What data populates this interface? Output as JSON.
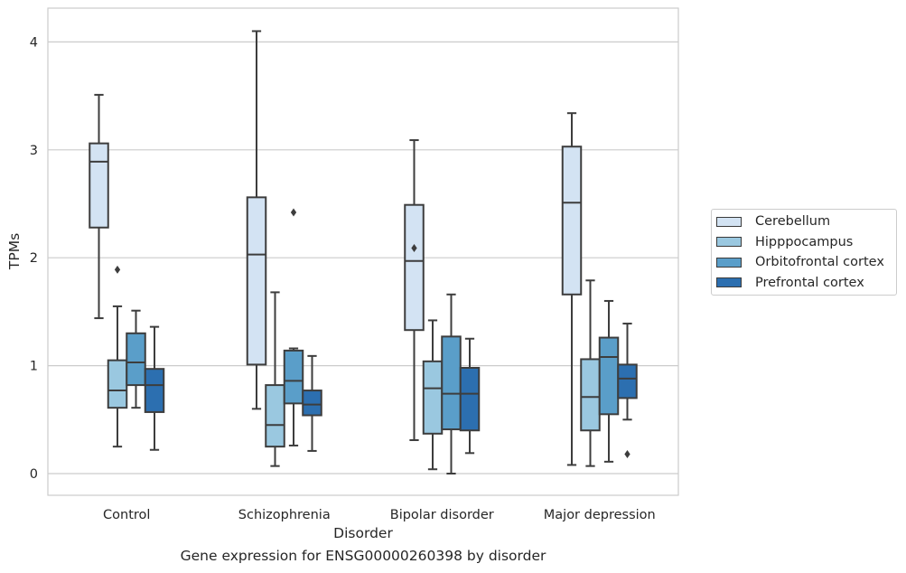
{
  "chart_data": {
    "type": "boxplot",
    "title": "",
    "caption": "Gene expression for ENSG00000260398 by disorder",
    "xlabel": "Disorder",
    "ylabel": "TPMs",
    "ylim": [
      -0.2,
      4.3
    ],
    "yticks": [
      "0",
      "1",
      "2",
      "3",
      "4"
    ],
    "grid": "horizontal",
    "legend_position": "right",
    "categories": [
      "Control",
      "Schizophrenia",
      "Bipolar disorder",
      "Major depression"
    ],
    "series": [
      {
        "name": "Cerebellum",
        "color": "#d3e3f3",
        "boxes": [
          {
            "whisker_low": 1.44,
            "q1": 2.28,
            "median": 2.89,
            "q3": 3.06,
            "whisker_high": 3.51,
            "outliers": []
          },
          {
            "whisker_low": 0.6,
            "q1": 1.01,
            "median": 2.03,
            "q3": 2.56,
            "whisker_high": 4.1,
            "outliers": []
          },
          {
            "whisker_low": 0.31,
            "q1": 1.33,
            "median": 1.97,
            "q3": 2.49,
            "whisker_high": 3.09,
            "outliers": [
              2.09
            ]
          },
          {
            "whisker_low": 0.08,
            "q1": 1.66,
            "median": 2.51,
            "q3": 3.03,
            "whisker_high": 3.34,
            "outliers": []
          }
        ]
      },
      {
        "name": "Hipppocampus",
        "color": "#9ac8e0",
        "boxes": [
          {
            "whisker_low": 0.25,
            "q1": 0.61,
            "median": 0.77,
            "q3": 1.05,
            "whisker_high": 1.55,
            "outliers": [
              1.89
            ]
          },
          {
            "whisker_low": 0.07,
            "q1": 0.25,
            "median": 0.45,
            "q3": 0.82,
            "whisker_high": 1.68,
            "outliers": []
          },
          {
            "whisker_low": 0.04,
            "q1": 0.37,
            "median": 0.79,
            "q3": 1.04,
            "whisker_high": 1.42,
            "outliers": []
          },
          {
            "whisker_low": 0.07,
            "q1": 0.4,
            "median": 0.71,
            "q3": 1.06,
            "whisker_high": 1.79,
            "outliers": []
          }
        ]
      },
      {
        "name": "Orbitofrontal cortex",
        "color": "#5a9ec9",
        "boxes": [
          {
            "whisker_low": 0.61,
            "q1": 0.82,
            "median": 1.03,
            "q3": 1.3,
            "whisker_high": 1.51,
            "outliers": []
          },
          {
            "whisker_low": 0.26,
            "q1": 0.65,
            "median": 0.86,
            "q3": 1.14,
            "whisker_high": 1.16,
            "outliers": [
              2.42
            ]
          },
          {
            "whisker_low": 0.0,
            "q1": 0.41,
            "median": 0.74,
            "q3": 1.27,
            "whisker_high": 1.66,
            "outliers": []
          },
          {
            "whisker_low": 0.11,
            "q1": 0.55,
            "median": 1.08,
            "q3": 1.26,
            "whisker_high": 1.6,
            "outliers": []
          }
        ]
      },
      {
        "name": "Prefrontal cortex",
        "color": "#2c6fb0",
        "boxes": [
          {
            "whisker_low": 0.22,
            "q1": 0.57,
            "median": 0.82,
            "q3": 0.97,
            "whisker_high": 1.36,
            "outliers": []
          },
          {
            "whisker_low": 0.21,
            "q1": 0.54,
            "median": 0.64,
            "q3": 0.77,
            "whisker_high": 1.09,
            "outliers": []
          },
          {
            "whisker_low": 0.19,
            "q1": 0.4,
            "median": 0.74,
            "q3": 0.98,
            "whisker_high": 1.25,
            "outliers": []
          },
          {
            "whisker_low": 0.5,
            "q1": 0.7,
            "median": 0.88,
            "q3": 1.01,
            "whisker_high": 1.39,
            "outliers": [
              0.18
            ]
          }
        ]
      }
    ]
  }
}
